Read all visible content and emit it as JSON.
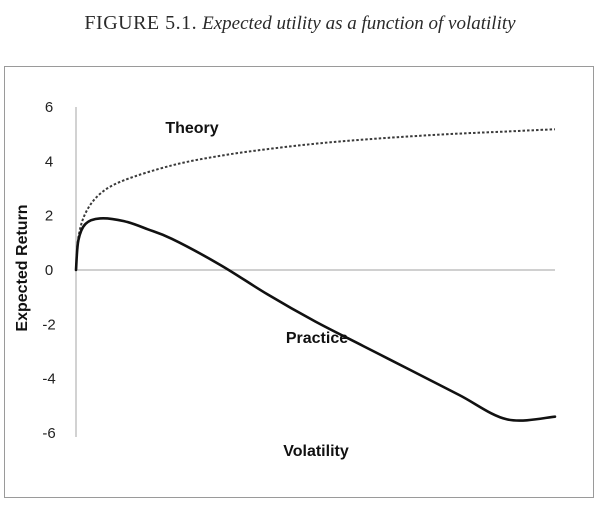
{
  "figure": {
    "label": "FIGURE 5.1.",
    "caption": "Expected utility as a function of volatility"
  },
  "chart_data": {
    "type": "line",
    "title": "",
    "xlabel": "Volatility",
    "ylabel": "Expected Return",
    "ylim": [
      -6,
      6
    ],
    "yticks": [
      "6",
      "4",
      "2",
      "0",
      "-2",
      "-4",
      "-6"
    ],
    "ytick_values": [
      6,
      4,
      2,
      0,
      -2,
      -4,
      -6
    ],
    "grid": false,
    "legend": "none",
    "series": [
      {
        "name": "Theory",
        "style": "dotted",
        "x": [
          0,
          0.05,
          0.2,
          0.5,
          1,
          2,
          3,
          4,
          5,
          6,
          7,
          8,
          9,
          10
        ],
        "values": [
          0,
          1.2,
          2.1,
          2.8,
          3.3,
          3.85,
          4.2,
          4.45,
          4.65,
          4.8,
          4.92,
          5.02,
          5.1,
          5.18
        ]
      },
      {
        "name": "Practice",
        "style": "solid",
        "x": [
          0,
          0.05,
          0.2,
          0.5,
          1,
          1.5,
          2,
          3,
          4,
          5,
          6,
          7,
          8,
          9,
          10
        ],
        "values": [
          0,
          1.1,
          1.7,
          1.9,
          1.8,
          1.5,
          1.15,
          0.2,
          -0.9,
          -1.9,
          -2.8,
          -3.7,
          -4.6,
          -5.5,
          -5.4
        ]
      }
    ]
  }
}
